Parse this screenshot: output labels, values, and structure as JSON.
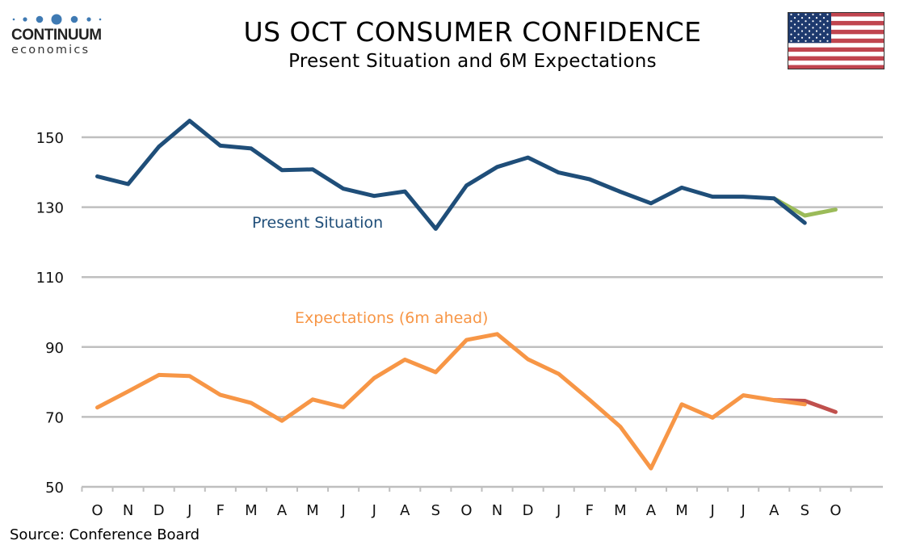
{
  "header": {
    "logo_top": "CONTINUUM",
    "logo_bottom": "economics",
    "title": "US OCT CONSUMER CONFIDENCE",
    "subtitle": "Present Situation and 6M Expectations",
    "flag": "us-flag-icon"
  },
  "footer": {
    "source": "Source: Conference Board"
  },
  "colors": {
    "present": "#1F4E79",
    "present_revised": "#9BBB59",
    "expectations": "#F79646",
    "expectations_revised": "#C0504D",
    "grid": "#BFBFBF",
    "logo_blue": "#3F7AB3"
  },
  "chart_data": {
    "type": "line",
    "title": "US OCT CONSUMER CONFIDENCE",
    "subtitle": "Present Situation and 6M Expectations",
    "xlabel": "",
    "ylabel": "",
    "ylim": [
      50,
      160
    ],
    "yticks": [
      50,
      70,
      90,
      110,
      130,
      150
    ],
    "grid": true,
    "categories": [
      "O",
      "N",
      "D",
      "J",
      "F",
      "M",
      "A",
      "M",
      "J",
      "J",
      "A",
      "S",
      "O",
      "N",
      "D",
      "J",
      "F",
      "M",
      "A",
      "M",
      "J",
      "J",
      "A",
      "S",
      "O"
    ],
    "series": [
      {
        "name": "Present Situation",
        "label": "Present Situation",
        "color_key": "present",
        "start_index": 0,
        "values": [
          138.8,
          136.6,
          147.3,
          154.7,
          147.6,
          146.8,
          140.6,
          140.8,
          135.3,
          133.2,
          134.5,
          123.8,
          136.2,
          141.5,
          144.2,
          139.9,
          138.0,
          134.4,
          131.1,
          135.6,
          133.0,
          133.0,
          132.5,
          125.5
        ]
      },
      {
        "name": "Present Situation (revised)",
        "label": "",
        "color_key": "present_revised",
        "start_index": 22,
        "values": [
          132.5,
          127.6,
          129.3
        ]
      },
      {
        "name": "Expectations (6m ahead)",
        "label": "Expectations (6m ahead)",
        "color_key": "expectations",
        "start_index": 0,
        "values": [
          72.7,
          77.3,
          82.0,
          81.7,
          76.3,
          74.0,
          68.9,
          75.0,
          72.8,
          81.1,
          86.4,
          82.8,
          92.0,
          93.7,
          86.5,
          82.3,
          74.9,
          67.2,
          55.3,
          73.6,
          69.8,
          76.2,
          74.8,
          73.6
        ]
      },
      {
        "name": "Expectations (6m ahead) (revised)",
        "label": "",
        "color_key": "expectations_revised",
        "start_index": 22,
        "values": [
          74.8,
          74.6,
          71.4
        ]
      }
    ],
    "annotations": [
      {
        "text": "Present Situation",
        "series": "Present Situation",
        "placement": "below line, left-center"
      },
      {
        "text": "Expectations (6m ahead)",
        "series": "Expectations (6m ahead)",
        "placement": "above line, center"
      }
    ],
    "legend": "none (inline labels)"
  }
}
